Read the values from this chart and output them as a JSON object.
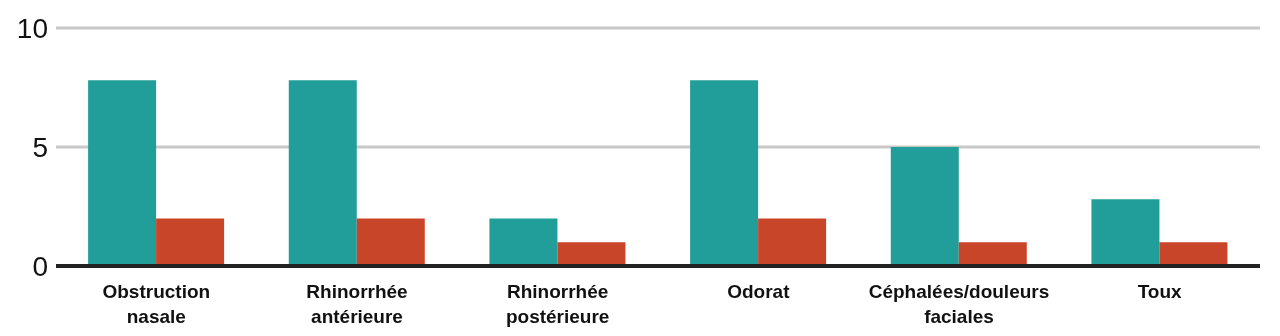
{
  "chart_data": {
    "type": "bar",
    "categories": [
      "Obstruction nasale",
      "Rhinorrhée antérieure",
      "Rhinorrhée postérieure",
      "Odorat",
      "Céphalées/douleurs faciales",
      "Toux"
    ],
    "series": [
      {
        "color": "#229e9a",
        "values": [
          7.8,
          7.8,
          2,
          7.8,
          5,
          2.8
        ]
      },
      {
        "color": "#c9452a",
        "values": [
          2,
          2,
          1,
          2,
          1,
          1
        ]
      }
    ],
    "ylim": [
      0,
      10
    ],
    "yticks": [
      0,
      5,
      10
    ],
    "grid": "y",
    "legend": false
  }
}
